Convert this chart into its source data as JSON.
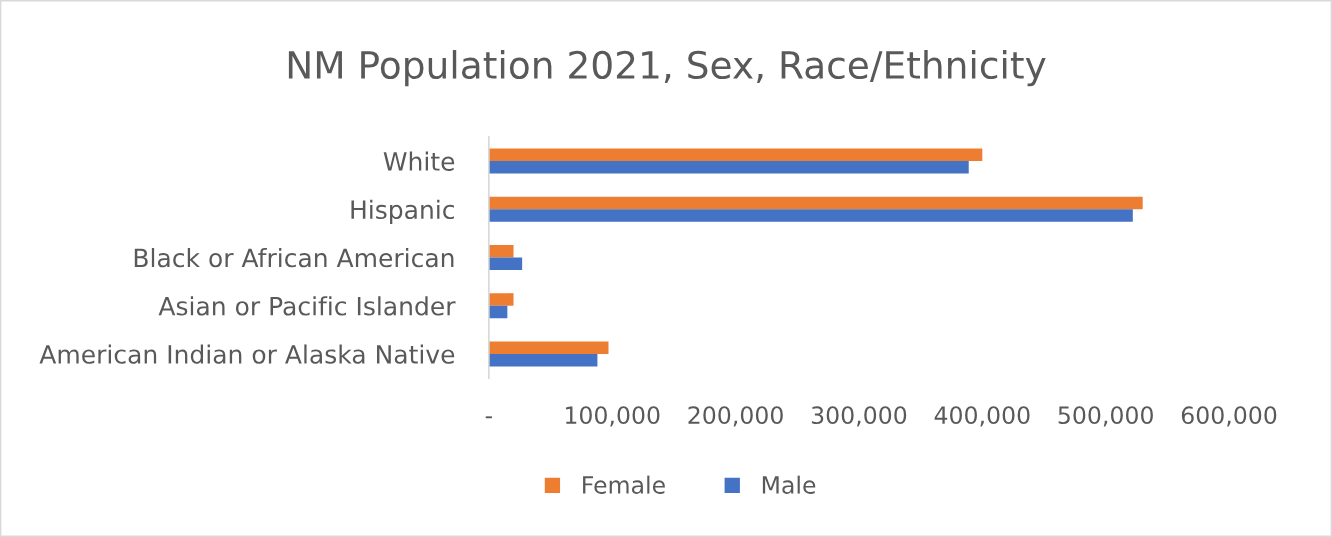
{
  "chart_data": {
    "type": "bar",
    "orientation": "horizontal",
    "title": "NM Population 2021, Sex, Race/Ethnicity",
    "categories": [
      "White",
      "Hispanic",
      "Black or African American",
      "Asian or Pacific Islander",
      "American Indian or Alaska Native"
    ],
    "series": [
      {
        "name": "Female",
        "color": "#ed7d31",
        "values": [
          400000,
          530000,
          20000,
          20000,
          97000
        ]
      },
      {
        "name": "Male",
        "color": "#4472c4",
        "values": [
          389000,
          522000,
          27000,
          15000,
          88000
        ]
      }
    ],
    "xlim": [
      0,
      600000
    ],
    "xticks": [
      {
        "value": 0,
        "label": "-"
      },
      {
        "value": 100000,
        "label": "100,000"
      },
      {
        "value": 200000,
        "label": "200,000"
      },
      {
        "value": 300000,
        "label": "300,000"
      },
      {
        "value": 400000,
        "label": "400,000"
      },
      {
        "value": 500000,
        "label": "500,000"
      },
      {
        "value": 600000,
        "label": "600,000"
      }
    ],
    "legend": "bottom"
  }
}
